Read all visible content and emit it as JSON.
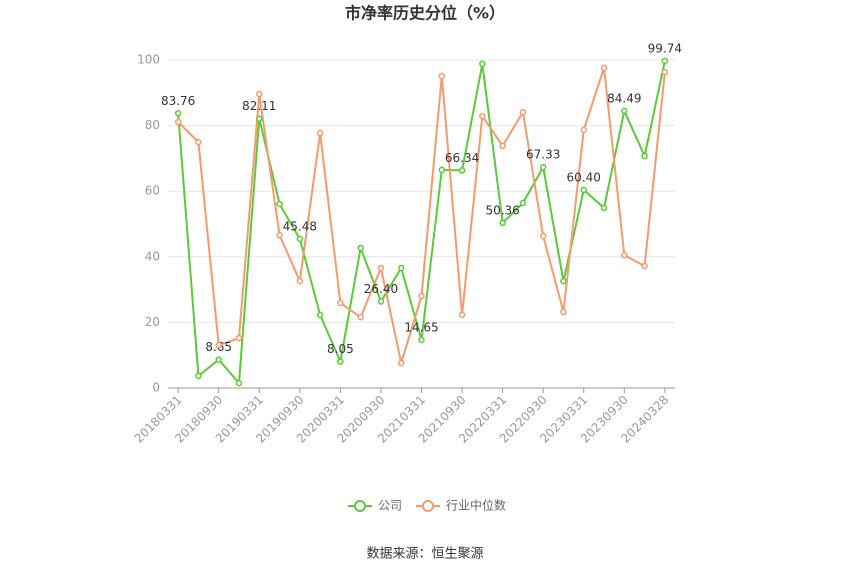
{
  "chart_data": {
    "type": "line",
    "title": "市净率历史分位（%）",
    "categories": [
      "20180331",
      null,
      "20180930",
      null,
      "20190331",
      null,
      "20190930",
      null,
      "20200331",
      null,
      "20200930",
      null,
      "20210331",
      null,
      "20210930",
      null,
      "20220331",
      null,
      "20220930",
      null,
      "20230331",
      null,
      "20230930",
      null,
      "20240328"
    ],
    "series": [
      {
        "name": "公司",
        "color": "#5cc83a",
        "values": [
          83.76,
          3.7,
          8.65,
          1.5,
          82.11,
          56.1,
          45.48,
          22.3,
          8.05,
          42.7,
          26.4,
          36.6,
          14.65,
          66.5,
          66.34,
          98.8,
          50.36,
          56.4,
          67.33,
          32.6,
          60.4,
          54.9,
          84.49,
          70.7,
          99.74
        ],
        "value_labels": [
          "83.76",
          null,
          "8.65",
          null,
          "82.11",
          null,
          "45.48",
          null,
          "8.05",
          null,
          "26.40",
          null,
          "14.65",
          null,
          "66.34",
          null,
          "50.36",
          null,
          "67.33",
          null,
          "60.40",
          null,
          "84.49",
          null,
          "99.74"
        ]
      },
      {
        "name": "行业中位数",
        "color": "#f59a6f",
        "values": [
          81.1,
          75.0,
          13.1,
          15.2,
          89.6,
          46.6,
          32.6,
          77.7,
          25.9,
          21.6,
          36.6,
          7.6,
          28.0,
          95.1,
          22.3,
          82.9,
          73.8,
          84.1,
          46.3,
          23.2,
          78.7,
          97.6,
          40.5,
          37.2,
          96.3
        ]
      }
    ],
    "ylim": [
      0,
      100
    ],
    "yticks": [
      0,
      20,
      40,
      60,
      80,
      100
    ],
    "grid": true,
    "source": "数据来源：恒生聚源"
  }
}
